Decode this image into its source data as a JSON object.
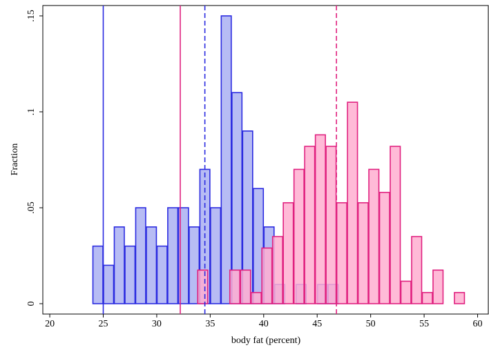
{
  "chart_data": {
    "type": "histogram",
    "x_label": "body fat (percent)",
    "y_label": "Fraction",
    "xlim": [
      19.35,
      61.0
    ],
    "ylim": [
      -0.0054,
      0.1554
    ],
    "xticks": [
      20,
      25,
      30,
      35,
      40,
      45,
      50,
      55,
      60
    ],
    "yticks": [
      0,
      {
        "value": 0.05,
        "label": ".05"
      },
      {
        "value": 0.1,
        "label": ".1"
      },
      {
        "value": 0.15,
        "label": ".15"
      }
    ],
    "series": [
      {
        "color": "#2a2ae0",
        "fill": "#aab0f2",
        "bins": [
          24,
          25,
          26,
          27,
          28,
          29,
          30,
          31,
          32,
          33,
          34,
          35,
          36,
          37,
          38,
          39,
          40,
          41,
          42,
          43,
          44,
          45,
          46,
          47
        ],
        "values": [
          0.03,
          0.02,
          0.04,
          0.03,
          0.05,
          0.04,
          0.03,
          0.05,
          0.05,
          0.04,
          0.07,
          0.05,
          0.15,
          0.11,
          0.09,
          0.06,
          0.04,
          0.01,
          0,
          0.01,
          0,
          0.01,
          0.01
        ]
      },
      {
        "color": "#e0207f",
        "fill": "#ffaed0",
        "bins": [
          33.8,
          34.8,
          35.8,
          36.8,
          37.8,
          38.8,
          39.8,
          40.8,
          41.8,
          42.8,
          43.8,
          44.8,
          45.8,
          46.8,
          47.8,
          48.8,
          49.8,
          50.8,
          51.8,
          52.8,
          53.8,
          54.8,
          55.8,
          56.8,
          57.8,
          58.8
        ],
        "values": [
          0.0175,
          0,
          0,
          0.0175,
          0.0175,
          0.0058,
          0.029,
          0.035,
          0.0526,
          0.07,
          0.082,
          0.088,
          0.082,
          0.0526,
          0.105,
          0.0526,
          0.07,
          0.058,
          0.082,
          0.0117,
          0.035,
          0.0058,
          0.0175,
          0,
          0.0058
        ]
      }
    ],
    "vlines": [
      {
        "x": 25,
        "color": "#2a2ae0",
        "dashed": false
      },
      {
        "x": 34.5,
        "color": "#2a2ae0",
        "dashed": true
      },
      {
        "x": 32.2,
        "color": "#e0207f",
        "dashed": false
      },
      {
        "x": 46.8,
        "color": "#e0207f",
        "dashed": true
      }
    ]
  }
}
